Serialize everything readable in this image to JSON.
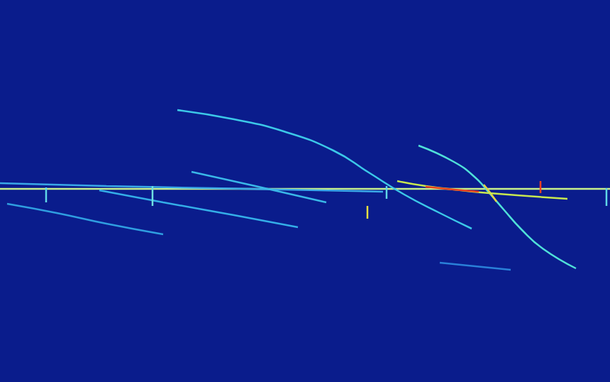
{
  "chart_data": {
    "type": "line",
    "xlim": [
      0,
      860
    ],
    "ylim": [
      0,
      538
    ],
    "tick_labels": false,
    "grid": false,
    "series": [
      {
        "color": "#c8f08c",
        "values": [
          [
            0,
            266
          ],
          [
            860,
            266
          ]
        ]
      },
      {
        "color": "#3cc8e8",
        "values": [
          [
            250,
            155
          ],
          [
            330,
            168
          ],
          [
            400,
            185
          ],
          [
            470,
            212
          ],
          [
            520,
            243
          ],
          [
            570,
            274
          ],
          [
            620,
            300
          ],
          [
            665,
            322
          ]
        ]
      },
      {
        "color": "#50e0d8",
        "values": [
          [
            590,
            205
          ],
          [
            640,
            228
          ],
          [
            670,
            250
          ],
          [
            690,
            272
          ],
          [
            710,
            295
          ],
          [
            735,
            323
          ],
          [
            765,
            350
          ],
          [
            812,
            378
          ]
        ]
      },
      {
        "color": "#e8d040",
        "values": [
          [
            682,
            260
          ],
          [
            690,
            270
          ],
          [
            700,
            284
          ]
        ]
      },
      {
        "color": "#3aa8e8",
        "values": [
          [
            0,
            258
          ],
          [
            150,
            262
          ],
          [
            300,
            265
          ],
          [
            450,
            268
          ],
          [
            540,
            270
          ]
        ]
      },
      {
        "color": "#3ab8e8",
        "values": [
          [
            270,
            242
          ],
          [
            360,
            262
          ],
          [
            460,
            285
          ]
        ]
      },
      {
        "color": "#c8e850",
        "values": [
          [
            560,
            255
          ],
          [
            600,
            262
          ],
          [
            650,
            268
          ],
          [
            690,
            272
          ],
          [
            800,
            280
          ]
        ]
      },
      {
        "color": "#e84020",
        "values": [
          [
            600,
            263
          ],
          [
            640,
            267
          ],
          [
            675,
            270
          ]
        ]
      },
      {
        "color": "#2f9ee0",
        "values": [
          [
            10,
            287
          ],
          [
            80,
            300
          ],
          [
            150,
            315
          ],
          [
            230,
            330
          ]
        ]
      },
      {
        "color": "#34aee8",
        "values": [
          [
            140,
            268
          ],
          [
            230,
            285
          ],
          [
            330,
            303
          ],
          [
            420,
            320
          ]
        ]
      },
      {
        "color": "#2a80d8",
        "values": [
          [
            620,
            370
          ],
          [
            720,
            380
          ]
        ]
      },
      {
        "color": "#60d8e8",
        "values": [
          [
            65,
            264
          ],
          [
            65,
            285
          ]
        ]
      },
      {
        "color": "#70e0e0",
        "values": [
          [
            215,
            262
          ],
          [
            215,
            290
          ]
        ]
      },
      {
        "color": "#e8e040",
        "values": [
          [
            518,
            290
          ],
          [
            518,
            308
          ]
        ]
      },
      {
        "color": "#60d8e8",
        "values": [
          [
            545,
            262
          ],
          [
            545,
            280
          ]
        ]
      },
      {
        "color": "#ff4020",
        "values": [
          [
            762,
            255
          ],
          [
            762,
            272
          ]
        ]
      },
      {
        "color": "#60d8e8",
        "values": [
          [
            855,
            265
          ],
          [
            855,
            290
          ]
        ]
      }
    ]
  }
}
